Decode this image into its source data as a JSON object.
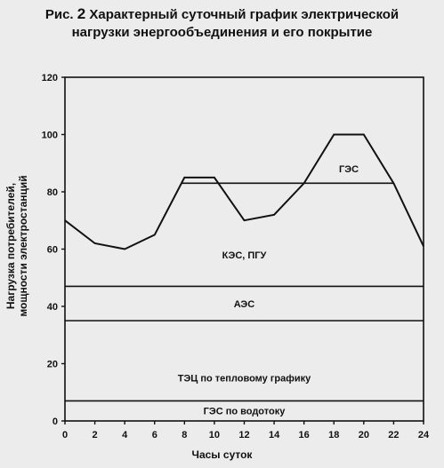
{
  "figure": {
    "number_prefix": "Рис.",
    "number": "2",
    "title_line1": "Характерный суточный график электрической",
    "title_line2": "нагрузки энергообъединения и его покрытие"
  },
  "chart_data": {
    "type": "area",
    "xlabel": "Часы суток",
    "ylabel_line1": "Нагрузка потребителей,",
    "ylabel_line2": "мощности электростанций",
    "xlim": [
      0,
      24
    ],
    "ylim": [
      0,
      120
    ],
    "xticks": [
      0,
      2,
      4,
      6,
      8,
      10,
      12,
      14,
      16,
      18,
      20,
      22,
      24
    ],
    "yticks": [
      0,
      20,
      40,
      60,
      80,
      100,
      120
    ],
    "grid": false,
    "load_curve": {
      "x": [
        0,
        2,
        4,
        6,
        8,
        10,
        12,
        14,
        16,
        18,
        20,
        22,
        24
      ],
      "y": [
        70,
        62,
        60,
        65,
        85,
        85,
        70,
        72,
        83,
        100,
        100,
        83,
        61
      ]
    },
    "layers": [
      {
        "label": "ГЭС по водотоку",
        "lower": 0,
        "upper": 7
      },
      {
        "label": "ТЭЦ по тепловому графику",
        "lower": 7,
        "upper": 35
      },
      {
        "label": "АЭС",
        "lower": 35,
        "upper": 47
      },
      {
        "label": "КЭС, ПГУ",
        "lower": 47,
        "upper": 83
      },
      {
        "label": "ГЭС",
        "lower": 83,
        "upper": "load_curve"
      }
    ],
    "layer_labels": [
      {
        "text": "ГЭС по водотоку",
        "x": 12,
        "y": 3.5
      },
      {
        "text": "ТЭЦ по тепловому графику",
        "x": 12,
        "y": 15
      },
      {
        "text": "АЭС",
        "x": 12,
        "y": 41
      },
      {
        "text": "КЭС, ПГУ",
        "x": 12,
        "y": 58
      },
      {
        "text": "ГЭС",
        "x": 19,
        "y": 88
      }
    ]
  }
}
